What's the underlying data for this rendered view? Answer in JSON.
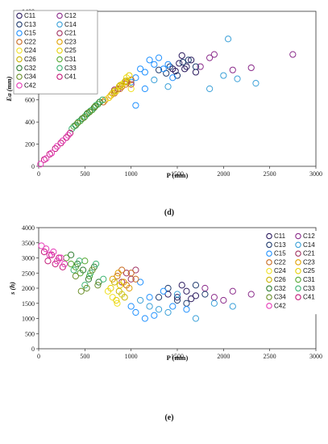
{
  "figure_title": "",
  "chart_data": [
    {
      "type": "scatter",
      "panel_label": "(d)",
      "xlabel": "P (mm)",
      "ylabel": "Ea (mm)",
      "xlim": [
        0,
        3000
      ],
      "ylim": [
        0,
        1400
      ],
      "x_ticks": [
        "0",
        "500",
        "1000",
        "1500",
        "2000",
        "2500",
        "3000"
      ],
      "y_ticks": [
        "0",
        "200",
        "400",
        "600",
        "800",
        "1000",
        "1200",
        "1400"
      ],
      "legend_placement": "top-left",
      "grid": false,
      "series": [
        {
          "name": "C11",
          "color": "#2a1a5e",
          "points": [
            [
              1450,
              880
            ],
            [
              1520,
              930
            ],
            [
              1600,
              900
            ],
            [
              1650,
              960
            ],
            [
              1700,
              850
            ],
            [
              1550,
              1000
            ],
            [
              1480,
              860
            ],
            [
              1580,
              880
            ]
          ]
        },
        {
          "name": "C12",
          "color": "#8a2a8a",
          "points": [
            [
              1750,
              900
            ],
            [
              1850,
              980
            ],
            [
              2300,
              890
            ],
            [
              2750,
              1010
            ],
            [
              1900,
              1010
            ],
            [
              2100,
              870
            ]
          ]
        },
        {
          "name": "C13",
          "color": "#1f3b6e",
          "points": [
            [
              1300,
              870
            ],
            [
              1420,
              900
            ],
            [
              1500,
              820
            ],
            [
              1620,
              960
            ],
            [
              1700,
              900
            ],
            [
              1560,
              940
            ],
            [
              1380,
              840
            ]
          ]
        },
        {
          "name": "C14",
          "color": "#3aa0d8",
          "points": [
            [
              2050,
              1150
            ],
            [
              2150,
              790
            ],
            [
              1850,
              700
            ],
            [
              2350,
              750
            ],
            [
              1250,
              780
            ],
            [
              1400,
              720
            ],
            [
              2000,
              820
            ]
          ]
        },
        {
          "name": "C15",
          "color": "#1e90ff",
          "points": [
            [
              1050,
              800
            ],
            [
              1150,
              850
            ],
            [
              1250,
              920
            ],
            [
              1350,
              880
            ],
            [
              1200,
              960
            ],
            [
              1100,
              880
            ],
            [
              1300,
              980
            ],
            [
              1400,
              920
            ],
            [
              1000,
              760
            ],
            [
              1050,
              550
            ],
            [
              1150,
              700
            ],
            [
              1450,
              800
            ]
          ]
        },
        {
          "name": "C21",
          "color": "#a03060",
          "points": [
            [
              800,
              660
            ],
            [
              860,
              700
            ],
            [
              900,
              720
            ],
            [
              950,
              760
            ],
            [
              1000,
              740
            ],
            [
              820,
              690
            ]
          ]
        },
        {
          "name": "C22",
          "color": "#c86a20",
          "points": [
            [
              700,
              580
            ],
            [
              760,
              620
            ],
            [
              820,
              660
            ],
            [
              880,
              700
            ],
            [
              940,
              740
            ],
            [
              1000,
              780
            ]
          ]
        },
        {
          "name": "C23",
          "color": "#e0a000",
          "points": [
            [
              720,
              600
            ],
            [
              780,
              640
            ],
            [
              840,
              680
            ],
            [
              900,
              720
            ],
            [
              960,
              760
            ]
          ]
        },
        {
          "name": "C24",
          "color": "#f0e020",
          "points": [
            [
              760,
              620
            ],
            [
              840,
              680
            ],
            [
              900,
              740
            ],
            [
              950,
              800
            ],
            [
              1000,
              700
            ]
          ]
        },
        {
          "name": "C25",
          "color": "#e6d000",
          "points": [
            [
              800,
              660
            ],
            [
              870,
              720
            ],
            [
              930,
              760
            ],
            [
              980,
              820
            ]
          ]
        },
        {
          "name": "C26",
          "color": "#c8b400",
          "points": [
            [
              820,
              680
            ],
            [
              880,
              730
            ],
            [
              940,
              770
            ]
          ]
        },
        {
          "name": "C31",
          "color": "#55a830",
          "points": [
            [
              380,
              360
            ],
            [
              450,
              410
            ],
            [
              520,
              470
            ],
            [
              580,
              510
            ],
            [
              640,
              560
            ]
          ]
        },
        {
          "name": "C32",
          "color": "#2e7d32",
          "points": [
            [
              400,
              370
            ],
            [
              470,
              430
            ],
            [
              530,
              480
            ],
            [
              600,
              530
            ],
            [
              660,
              580
            ]
          ]
        },
        {
          "name": "C33",
          "color": "#3cb371",
          "points": [
            [
              360,
              340
            ],
            [
              430,
              400
            ],
            [
              500,
              450
            ],
            [
              560,
              500
            ],
            [
              620,
              550
            ],
            [
              690,
              600
            ]
          ]
        },
        {
          "name": "C34",
          "color": "#6a8f2a",
          "points": [
            [
              420,
              390
            ],
            [
              490,
              440
            ],
            [
              550,
              490
            ],
            [
              610,
              540
            ]
          ]
        },
        {
          "name": "C41",
          "color": "#c21878",
          "points": [
            [
              60,
              60
            ],
            [
              120,
              110
            ],
            [
              180,
              160
            ],
            [
              240,
              210
            ],
            [
              300,
              260
            ],
            [
              340,
              300
            ]
          ]
        },
        {
          "name": "C42",
          "color": "#e63ab8",
          "points": [
            [
              20,
              20
            ],
            [
              80,
              70
            ],
            [
              140,
              120
            ],
            [
              200,
              180
            ],
            [
              260,
              230
            ],
            [
              320,
              280
            ]
          ]
        }
      ]
    },
    {
      "type": "scatter",
      "panel_label": "(e)",
      "xlabel": "P (mm)",
      "ylabel": "s (h)",
      "xlim": [
        0,
        3000
      ],
      "ylim": [
        0,
        4000
      ],
      "x_ticks": [
        "0",
        "500",
        "1000",
        "1500",
        "2000",
        "2500",
        "3000"
      ],
      "y_ticks": [
        "0",
        "500",
        "1000",
        "1500",
        "2000",
        "2500",
        "3000",
        "3500",
        "4000"
      ],
      "legend_placement": "right",
      "grid": false,
      "series": [
        {
          "name": "C11",
          "color": "#2a1a5e",
          "points": [
            [
              1400,
              1800
            ],
            [
              1500,
              1700
            ],
            [
              1600,
              1900
            ],
            [
              1700,
              1750
            ],
            [
              1550,
              2100
            ],
            [
              1650,
              1650
            ]
          ]
        },
        {
          "name": "C12",
          "color": "#8a2a8a",
          "points": [
            [
              1800,
              2000
            ],
            [
              1900,
              1700
            ],
            [
              2100,
              1900
            ],
            [
              2300,
              1800
            ],
            [
              2750,
              1550
            ],
            [
              2000,
              1600
            ]
          ]
        },
        {
          "name": "C13",
          "color": "#1f3b6e",
          "points": [
            [
              1300,
              1700
            ],
            [
              1400,
              2000
            ],
            [
              1500,
              1600
            ],
            [
              1600,
              1500
            ],
            [
              1700,
              2100
            ],
            [
              1800,
              1800
            ]
          ]
        },
        {
          "name": "C14",
          "color": "#3aa0d8",
          "points": [
            [
              1100,
              1600
            ],
            [
              1200,
              1400
            ],
            [
              1300,
              1300
            ],
            [
              1400,
              1200
            ],
            [
              1500,
              1800
            ],
            [
              1700,
              1000
            ],
            [
              1900,
              1500
            ],
            [
              2100,
              1400
            ]
          ]
        },
        {
          "name": "C15",
          "color": "#1e90ff",
          "points": [
            [
              900,
              1800
            ],
            [
              1000,
              1400
            ],
            [
              1050,
              1200
            ],
            [
              1100,
              2200
            ],
            [
              1150,
              1000
            ],
            [
              1200,
              1700
            ],
            [
              1250,
              1100
            ],
            [
              1350,
              1900
            ],
            [
              1450,
              1400
            ],
            [
              1600,
              1300
            ]
          ]
        },
        {
          "name": "C21",
          "color": "#a03060",
          "points": [
            [
              950,
              2500
            ],
            [
              1000,
              2300
            ],
            [
              1050,
              2600
            ],
            [
              900,
              2200
            ]
          ]
        },
        {
          "name": "C22",
          "color": "#c86a20",
          "points": [
            [
              850,
              2400
            ],
            [
              900,
              2600
            ],
            [
              950,
              2100
            ],
            [
              1000,
              2500
            ],
            [
              1050,
              2300
            ]
          ]
        },
        {
          "name": "C23",
          "color": "#e0a000",
          "points": [
            [
              800,
              2300
            ],
            [
              860,
              2500
            ],
            [
              920,
              2200
            ],
            [
              980,
              2000
            ]
          ]
        },
        {
          "name": "C24",
          "color": "#f0e020",
          "points": [
            [
              750,
              1900
            ],
            [
              800,
              1700
            ],
            [
              850,
              1500
            ],
            [
              900,
              1800
            ]
          ]
        },
        {
          "name": "C25",
          "color": "#e6d000",
          "points": [
            [
              780,
              2000
            ],
            [
              840,
              1600
            ],
            [
              880,
              2100
            ]
          ]
        },
        {
          "name": "C26",
          "color": "#c8b400",
          "points": [
            [
              820,
              2200
            ],
            [
              870,
              1900
            ],
            [
              930,
              1700
            ]
          ]
        },
        {
          "name": "C31",
          "color": "#55a830",
          "points": [
            [
              300,
              3000
            ],
            [
              350,
              2800
            ],
            [
              400,
              2700
            ],
            [
              450,
              2500
            ],
            [
              500,
              2900
            ],
            [
              550,
              2400
            ]
          ]
        },
        {
          "name": "C32",
          "color": "#2e7d32",
          "points": [
            [
              350,
              3100
            ],
            [
              420,
              2800
            ],
            [
              480,
              2600
            ],
            [
              540,
              2300
            ],
            [
              600,
              2700
            ],
            [
              650,
              2200
            ]
          ]
        },
        {
          "name": "C33",
          "color": "#3cb371",
          "points": [
            [
              380,
              2600
            ],
            [
              440,
              2900
            ],
            [
              500,
              2100
            ],
            [
              560,
              2500
            ],
            [
              620,
              2800
            ],
            [
              700,
              2300
            ]
          ]
        },
        {
          "name": "C34",
          "color": "#6a8f2a",
          "points": [
            [
              400,
              2400
            ],
            [
              460,
              1900
            ],
            [
              520,
              2000
            ],
            [
              580,
              2600
            ],
            [
              640,
              2100
            ]
          ]
        },
        {
          "name": "C41",
          "color": "#c21878",
          "points": [
            [
              60,
              3200
            ],
            [
              100,
              2900
            ],
            [
              140,
              3100
            ],
            [
              180,
              2800
            ],
            [
              220,
              3000
            ],
            [
              260,
              2700
            ]
          ]
        },
        {
          "name": "C42",
          "color": "#e63ab8",
          "points": [
            [
              30,
              3400
            ],
            [
              80,
              3300
            ],
            [
              120,
              3100
            ],
            [
              160,
              3200
            ],
            [
              200,
              2900
            ],
            [
              240,
              3000
            ],
            [
              280,
              2800
            ]
          ]
        }
      ]
    }
  ]
}
